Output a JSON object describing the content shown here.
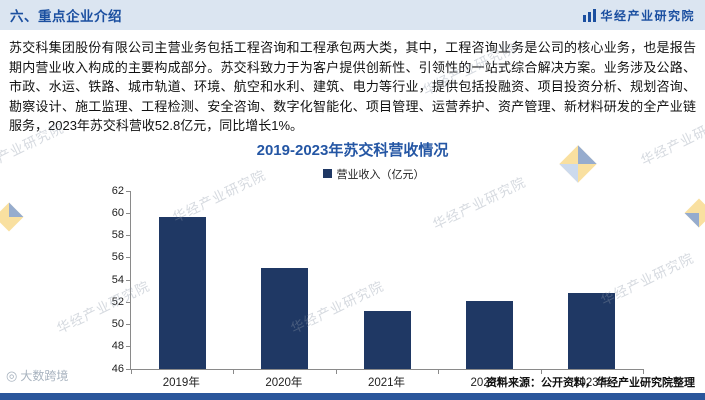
{
  "page": {
    "header": {
      "title": "六、重点企业介绍",
      "brand": "华经产业研究院"
    },
    "intro": "苏交科集团股份有限公司主营业务包括工程咨询和工程承包两大类，其中，工程咨询业务是公司的核心业务，也是报告期内营业收入构成的主要构成部分。苏交科致力于为客户提供创新性、引领性的一站式综合解决方案。业务涉及公路、市政、水运、铁路、城市轨道、环境、航空和水利、建筑、电力等行业，提供包括投融资、项目投资分析、规划咨询、勘察设计、施工监理、工程检测、安全咨询、数字化智能化、项目管理、运营养护、资产管理、新材料研发的全产业链服务，2023年苏交科营收52.8亿元，同比增长1%。",
    "source_note": "资料来源：公开资料，华经产业研究院整理",
    "watermark_text": "华经产业研究院",
    "watermark_badge": "大数跨境"
  },
  "chart_data": {
    "type": "bar",
    "title": "2019-2023年苏交科营收情况",
    "legend": "营业收入（亿元）",
    "categories": [
      "2019年",
      "2020年",
      "2021年",
      "2022年",
      "2023年"
    ],
    "values": [
      59.6,
      55.0,
      51.2,
      52.1,
      52.8
    ],
    "ylabel": "",
    "ylim": [
      46,
      62
    ],
    "ytick_step": 2,
    "grid": false,
    "legend_position": "top",
    "bar_color": "#1f3864"
  },
  "colors": {
    "accent_blue": "#1b4fa0",
    "header_band": "#dbe5f1",
    "bottom_bar": "#2a569b",
    "bar": "#1f3864"
  }
}
